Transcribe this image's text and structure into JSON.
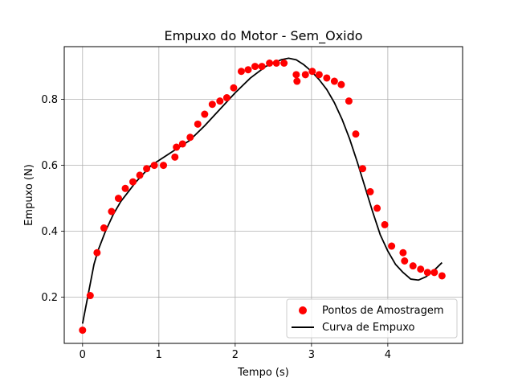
{
  "chart_data": {
    "type": "scatter",
    "title": "Empuxo do Motor - Sem_Oxido",
    "xlabel": "Tempo (s)",
    "ylabel": "Empuxo (N)",
    "xlim": [
      -0.24,
      4.98
    ],
    "ylim": [
      0.06,
      0.96
    ],
    "xticks": [
      0,
      1,
      2,
      3,
      4
    ],
    "yticks": [
      0.2,
      0.4,
      0.6,
      0.8
    ],
    "grid": true,
    "legend_position": "lower-right",
    "colors": {
      "scatter": "#ff0000",
      "line": "#000000",
      "grid": "#b0b0b0"
    },
    "series": [
      {
        "name": "Pontos de Amostragem",
        "kind": "scatter",
        "x": [
          0.0,
          0.1,
          0.19,
          0.28,
          0.38,
          0.47,
          0.56,
          0.66,
          0.75,
          0.84,
          0.94,
          1.06,
          1.21,
          1.23,
          1.31,
          1.41,
          1.51,
          1.6,
          1.7,
          1.8,
          1.89,
          1.98,
          2.08,
          2.17,
          2.26,
          2.35,
          2.45,
          2.54,
          2.64,
          2.8,
          2.81,
          2.92,
          3.01,
          3.1,
          3.2,
          3.3,
          3.39,
          3.49,
          3.58,
          3.67,
          3.77,
          3.86,
          3.96,
          4.05,
          4.2,
          4.22,
          4.33,
          4.43,
          4.52,
          4.61,
          4.71
        ],
        "y": [
          0.1,
          0.205,
          0.335,
          0.41,
          0.46,
          0.5,
          0.53,
          0.55,
          0.57,
          0.59,
          0.6,
          0.6,
          0.625,
          0.655,
          0.665,
          0.685,
          0.725,
          0.755,
          0.785,
          0.795,
          0.805,
          0.835,
          0.885,
          0.89,
          0.9,
          0.9,
          0.91,
          0.91,
          0.91,
          0.875,
          0.855,
          0.875,
          0.885,
          0.875,
          0.865,
          0.855,
          0.845,
          0.795,
          0.695,
          0.59,
          0.52,
          0.47,
          0.42,
          0.355,
          0.335,
          0.31,
          0.295,
          0.285,
          0.275,
          0.275,
          0.265
        ]
      },
      {
        "name": "Curva de Empuxo",
        "kind": "line",
        "x": [
          0.0,
          0.05,
          0.1,
          0.15,
          0.2,
          0.3,
          0.4,
          0.5,
          0.6,
          0.7,
          0.8,
          0.9,
          1.0,
          1.2,
          1.4,
          1.6,
          1.8,
          2.0,
          2.2,
          2.4,
          2.6,
          2.7,
          2.8,
          2.9,
          3.0,
          3.1,
          3.2,
          3.3,
          3.4,
          3.5,
          3.6,
          3.7,
          3.8,
          3.9,
          4.0,
          4.1,
          4.2,
          4.3,
          4.4,
          4.5,
          4.6,
          4.71
        ],
        "y": [
          0.12,
          0.18,
          0.24,
          0.3,
          0.34,
          0.4,
          0.45,
          0.49,
          0.52,
          0.55,
          0.575,
          0.6,
          0.615,
          0.645,
          0.675,
          0.72,
          0.77,
          0.82,
          0.865,
          0.9,
          0.92,
          0.925,
          0.92,
          0.905,
          0.885,
          0.86,
          0.83,
          0.79,
          0.74,
          0.68,
          0.61,
          0.535,
          0.46,
          0.39,
          0.34,
          0.3,
          0.275,
          0.255,
          0.252,
          0.262,
          0.28,
          0.305
        ]
      }
    ]
  }
}
